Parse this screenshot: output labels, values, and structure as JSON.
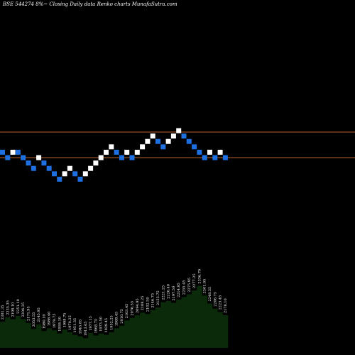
{
  "chart_data": {
    "type": "renko",
    "title": "BSE 544274  8%~ Closing Daily data  Renko  charts MunafaSutra.com",
    "colors": {
      "background": "#000000",
      "up_brick": "#ffffff",
      "down_brick": "#1e6fe0",
      "reference_line": "#b5612a",
      "volume_fill": "#0a2a0a",
      "label": "#ffffff"
    },
    "reference_lines": [
      2435,
      2080
    ],
    "bricks": [
      {
        "dir": "down",
        "value": 2155
      },
      {
        "dir": "down",
        "value": 2080
      },
      {
        "dir": "up",
        "value": 2155
      },
      {
        "dir": "down",
        "value": 2155
      },
      {
        "dir": "down",
        "value": 2080
      },
      {
        "dir": "down",
        "value": 2005
      },
      {
        "dir": "down",
        "value": 1930
      },
      {
        "dir": "up",
        "value": 2080
      },
      {
        "dir": "down",
        "value": 2005
      },
      {
        "dir": "down",
        "value": 1930
      },
      {
        "dir": "down",
        "value": 1855
      },
      {
        "dir": "down",
        "value": 1780
      },
      {
        "dir": "up",
        "value": 1855
      },
      {
        "dir": "up",
        "value": 1930
      },
      {
        "dir": "down",
        "value": 1855
      },
      {
        "dir": "down",
        "value": 1780
      },
      {
        "dir": "up",
        "value": 1855
      },
      {
        "dir": "up",
        "value": 1930
      },
      {
        "dir": "up",
        "value": 2005
      },
      {
        "dir": "up",
        "value": 2080
      },
      {
        "dir": "up",
        "value": 2155
      },
      {
        "dir": "up",
        "value": 2230
      },
      {
        "dir": "down",
        "value": 2155
      },
      {
        "dir": "down",
        "value": 2080
      },
      {
        "dir": "up",
        "value": 2155
      },
      {
        "dir": "down",
        "value": 2080
      },
      {
        "dir": "up",
        "value": 2155
      },
      {
        "dir": "up",
        "value": 2230
      },
      {
        "dir": "up",
        "value": 2305
      },
      {
        "dir": "up",
        "value": 2380
      },
      {
        "dir": "down",
        "value": 2305
      },
      {
        "dir": "down",
        "value": 2230
      },
      {
        "dir": "up",
        "value": 2305
      },
      {
        "dir": "up",
        "value": 2380
      },
      {
        "dir": "up",
        "value": 2455
      },
      {
        "dir": "down",
        "value": 2380
      },
      {
        "dir": "down",
        "value": 2305
      },
      {
        "dir": "down",
        "value": 2230
      },
      {
        "dir": "down",
        "value": 2155
      },
      {
        "dir": "down",
        "value": 2080
      },
      {
        "dir": "up",
        "value": 2155
      },
      {
        "dir": "down",
        "value": 2080
      },
      {
        "dir": "up",
        "value": 2155
      },
      {
        "dir": "down",
        "value": 2080
      }
    ],
    "price_labels": [
      "2301.35",
      "2235.35",
      "2198.10",
      "2251.10",
      "2204.35",
      "2171.95",
      "2053.55",
      "2145.95",
      "1980.10",
      "1986.40",
      "1979.75",
      "1958.10",
      "1998.75",
      "1970.25",
      "1951.35",
      "1945.85",
      "1913.65",
      "1977.15",
      "1968.75",
      "1973.50",
      "1929.45",
      "1952.25",
      "1988.45",
      "2010.75",
      "2103.45",
      "2076.55",
      "2094.95",
      "2108.25",
      "2102.50",
      "2146.75",
      "2155.75",
      "2221.25",
      "2226.40",
      "2197.50",
      "2214.85",
      "2255.45",
      "2275.95",
      "2277.25",
      "2336.70",
      "2301.05",
      "2248.55",
      "2206.75",
      "2223.45",
      "2178.10"
    ],
    "volume": [
      40,
      47,
      44,
      49,
      44,
      38,
      29,
      36,
      26,
      30,
      27,
      22,
      28,
      24,
      20,
      18,
      15,
      23,
      19,
      22,
      20,
      24,
      30,
      34,
      42,
      46,
      50,
      54,
      52,
      58,
      62,
      70,
      72,
      69,
      74,
      78,
      82,
      88,
      95,
      80,
      68,
      60,
      55,
      50
    ]
  }
}
